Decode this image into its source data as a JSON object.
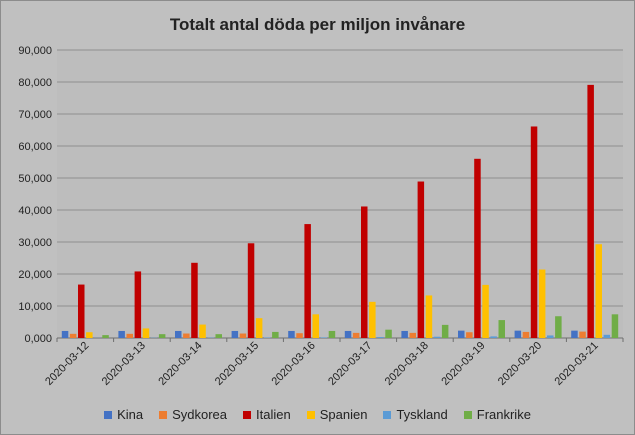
{
  "chart_data": {
    "type": "bar",
    "title": "Totalt antal döda per miljon invånare",
    "xlabel": "",
    "ylabel": "",
    "ylim": [
      0,
      90000
    ],
    "yticks": [
      "0,000",
      "10,000",
      "20,000",
      "30,000",
      "40,000",
      "50,000",
      "60,000",
      "70,000",
      "80,000",
      "90,000"
    ],
    "grid": true,
    "legend_position": "bottom",
    "categories": [
      "2020-03-12",
      "2020-03-13",
      "2020-03-14",
      "2020-03-15",
      "2020-03-16",
      "2020-03-17",
      "2020-03-18",
      "2020-03-19",
      "2020-03-20",
      "2020-03-21"
    ],
    "series": [
      {
        "name": "Kina",
        "color": "#4472c4",
        "values": [
          2200,
          2200,
          2200,
          2200,
          2200,
          2200,
          2200,
          2300,
          2300,
          2300
        ]
      },
      {
        "name": "Sydkorea",
        "color": "#ed7d31",
        "values": [
          1300,
          1300,
          1400,
          1400,
          1500,
          1600,
          1600,
          1800,
          1900,
          2000
        ]
      },
      {
        "name": "Italien",
        "color": "#c00000",
        "values": [
          16700,
          20800,
          23500,
          29600,
          35600,
          41100,
          48900,
          56000,
          66100,
          79100
        ]
      },
      {
        "name": "Spanien",
        "color": "#ffc000",
        "values": [
          1800,
          3000,
          4200,
          6200,
          7400,
          11300,
          13300,
          16600,
          21400,
          29300
        ]
      },
      {
        "name": "Tyskland",
        "color": "#5b9bd5",
        "values": [
          50,
          80,
          110,
          150,
          180,
          300,
          400,
          500,
          800,
          1000
        ]
      },
      {
        "name": "Frankrike",
        "color": "#70ad47",
        "values": [
          900,
          1200,
          1200,
          1900,
          2200,
          2600,
          4100,
          5600,
          6800,
          7400
        ]
      }
    ]
  }
}
